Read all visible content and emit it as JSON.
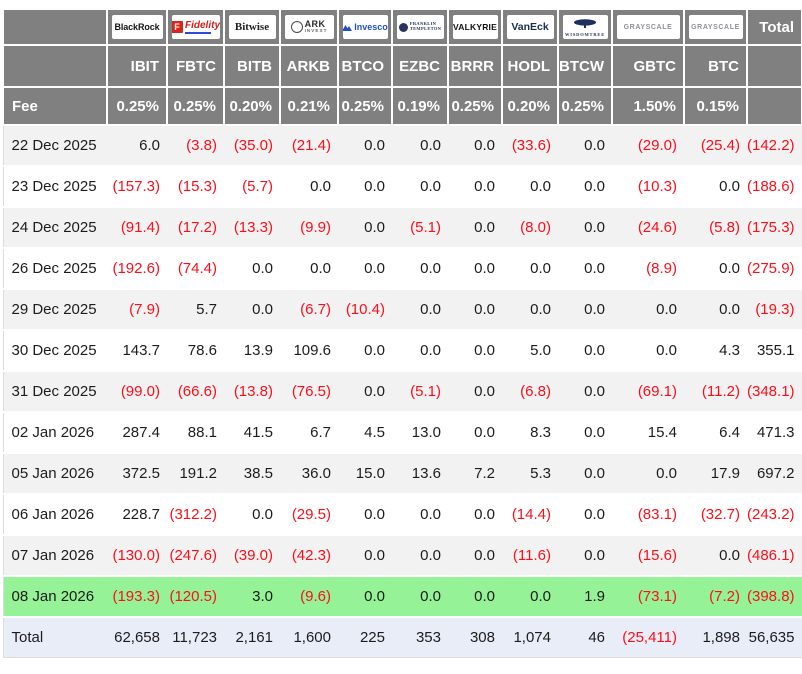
{
  "table": {
    "fee_label": "Fee",
    "total_label": "Total",
    "columns": [
      {
        "ticker": "IBIT",
        "fee": "0.25%",
        "provider": "BlackRock",
        "logo_type": "blackrock",
        "logo_parts": [
          "BlackRock"
        ]
      },
      {
        "ticker": "FBTC",
        "fee": "0.25%",
        "provider": "Fidelity",
        "logo_type": "fidelity",
        "logo_parts": [
          "F",
          "Fidelity"
        ]
      },
      {
        "ticker": "BITB",
        "fee": "0.20%",
        "provider": "Bitwise",
        "logo_type": "bitwise",
        "logo_parts": [
          "Bitwise"
        ]
      },
      {
        "ticker": "ARKB",
        "fee": "0.21%",
        "provider": "ARK Invest",
        "logo_type": "ark",
        "logo_parts": [
          "ARK",
          "INVEST"
        ]
      },
      {
        "ticker": "BTCO",
        "fee": "0.25%",
        "provider": "Invesco",
        "logo_type": "invesco",
        "logo_parts": [
          "Invesco"
        ]
      },
      {
        "ticker": "EZBC",
        "fee": "0.19%",
        "provider": "Franklin Templeton",
        "logo_type": "franklin",
        "logo_parts": [
          "FRANKLIN",
          "TEMPLETON"
        ]
      },
      {
        "ticker": "BRRR",
        "fee": "0.25%",
        "provider": "Valkyrie",
        "logo_type": "valkyrie",
        "logo_parts": [
          "VALKYRIE"
        ]
      },
      {
        "ticker": "HODL",
        "fee": "0.20%",
        "provider": "VanEck",
        "logo_type": "vaneck",
        "logo_parts": [
          "VanEck"
        ]
      },
      {
        "ticker": "BTCW",
        "fee": "0.25%",
        "provider": "WisdomTree",
        "logo_type": "wisdomtree",
        "logo_parts": [
          "WISDOMTREE"
        ]
      },
      {
        "ticker": "GBTC",
        "fee": "1.50%",
        "provider": "Grayscale",
        "logo_type": "grayscale",
        "logo_parts": [
          "GRAYSCALE"
        ]
      },
      {
        "ticker": "BTC",
        "fee": "0.15%",
        "provider": "Grayscale",
        "logo_type": "grayscale",
        "logo_parts": [
          "GRAYSCALE"
        ]
      }
    ],
    "rows": [
      {
        "date": "22 Dec 2025",
        "highlight": "stripe",
        "values": [
          "6.0",
          "(3.8)",
          "(35.0)",
          "(21.4)",
          "0.0",
          "0.0",
          "0.0",
          "(33.6)",
          "0.0",
          "(29.0)",
          "(25.4)"
        ],
        "total": "(142.2)"
      },
      {
        "date": "23 Dec 2025",
        "highlight": "plain",
        "values": [
          "(157.3)",
          "(15.3)",
          "(5.7)",
          "0.0",
          "0.0",
          "0.0",
          "0.0",
          "0.0",
          "0.0",
          "(10.3)",
          "0.0"
        ],
        "total": "(188.6)"
      },
      {
        "date": "24 Dec 2025",
        "highlight": "stripe",
        "values": [
          "(91.4)",
          "(17.2)",
          "(13.3)",
          "(9.9)",
          "0.0",
          "(5.1)",
          "0.0",
          "(8.0)",
          "0.0",
          "(24.6)",
          "(5.8)"
        ],
        "total": "(175.3)"
      },
      {
        "date": "26 Dec 2025",
        "highlight": "plain",
        "values": [
          "(192.6)",
          "(74.4)",
          "0.0",
          "0.0",
          "0.0",
          "0.0",
          "0.0",
          "0.0",
          "0.0",
          "(8.9)",
          "0.0"
        ],
        "total": "(275.9)"
      },
      {
        "date": "29 Dec 2025",
        "highlight": "stripe",
        "values": [
          "(7.9)",
          "5.7",
          "0.0",
          "(6.7)",
          "(10.4)",
          "0.0",
          "0.0",
          "0.0",
          "0.0",
          "0.0",
          "0.0"
        ],
        "total": "(19.3)"
      },
      {
        "date": "30 Dec 2025",
        "highlight": "plain",
        "values": [
          "143.7",
          "78.6",
          "13.9",
          "109.6",
          "0.0",
          "0.0",
          "0.0",
          "5.0",
          "0.0",
          "0.0",
          "4.3"
        ],
        "total": "355.1"
      },
      {
        "date": "31 Dec 2025",
        "highlight": "stripe",
        "values": [
          "(99.0)",
          "(66.6)",
          "(13.8)",
          "(76.5)",
          "0.0",
          "(5.1)",
          "0.0",
          "(6.8)",
          "0.0",
          "(69.1)",
          "(11.2)"
        ],
        "total": "(348.1)"
      },
      {
        "date": "02 Jan 2026",
        "highlight": "plain",
        "values": [
          "287.4",
          "88.1",
          "41.5",
          "6.7",
          "4.5",
          "13.0",
          "0.0",
          "8.3",
          "0.0",
          "15.4",
          "6.4"
        ],
        "total": "471.3"
      },
      {
        "date": "05 Jan 2026",
        "highlight": "stripe",
        "values": [
          "372.5",
          "191.2",
          "38.5",
          "36.0",
          "15.0",
          "13.6",
          "7.2",
          "5.3",
          "0.0",
          "0.0",
          "17.9"
        ],
        "total": "697.2"
      },
      {
        "date": "06 Jan 2026",
        "highlight": "plain",
        "values": [
          "228.7",
          "(312.2)",
          "0.0",
          "(29.5)",
          "0.0",
          "0.0",
          "0.0",
          "(14.4)",
          "0.0",
          "(83.1)",
          "(32.7)"
        ],
        "total": "(243.2)"
      },
      {
        "date": "07 Jan 2026",
        "highlight": "stripe",
        "values": [
          "(130.0)",
          "(247.6)",
          "(39.0)",
          "(42.3)",
          "0.0",
          "0.0",
          "0.0",
          "(11.6)",
          "0.0",
          "(15.6)",
          "0.0"
        ],
        "total": "(486.1)"
      },
      {
        "date": "08 Jan 2026",
        "highlight": "green",
        "values": [
          "(193.3)",
          "(120.5)",
          "3.0",
          "(9.6)",
          "0.0",
          "0.0",
          "0.0",
          "0.0",
          "1.9",
          "(73.1)",
          "(7.2)"
        ],
        "total": "(398.8)"
      }
    ],
    "total_row": {
      "label": "Total",
      "values": [
        "62,658",
        "11,723",
        "2,161",
        "1,600",
        "225",
        "353",
        "308",
        "1,074",
        "46",
        "(25,411)",
        "1,898"
      ],
      "total": "56,635"
    }
  },
  "chart_data": {
    "type": "table",
    "categories": [
      "22 Dec 2025",
      "23 Dec 2025",
      "24 Dec 2025",
      "26 Dec 2025",
      "29 Dec 2025",
      "30 Dec 2025",
      "31 Dec 2025",
      "02 Jan 2026",
      "05 Jan 2026",
      "06 Jan 2026",
      "07 Jan 2026",
      "08 Jan 2026"
    ],
    "series": [
      {
        "name": "IBIT",
        "provider": "BlackRock",
        "fee_pct": 0.25,
        "values": [
          6.0,
          -157.3,
          -91.4,
          -192.6,
          -7.9,
          143.7,
          -99.0,
          287.4,
          372.5,
          228.7,
          -130.0,
          -193.3
        ],
        "total": 62658
      },
      {
        "name": "FBTC",
        "provider": "Fidelity",
        "fee_pct": 0.25,
        "values": [
          -3.8,
          -15.3,
          -17.2,
          -74.4,
          5.7,
          78.6,
          -66.6,
          88.1,
          191.2,
          -312.2,
          -247.6,
          -120.5
        ],
        "total": 11723
      },
      {
        "name": "BITB",
        "provider": "Bitwise",
        "fee_pct": 0.2,
        "values": [
          -35.0,
          -5.7,
          -13.3,
          0.0,
          0.0,
          13.9,
          -13.8,
          41.5,
          38.5,
          0.0,
          -39.0,
          3.0
        ],
        "total": 2161
      },
      {
        "name": "ARKB",
        "provider": "ARK Invest",
        "fee_pct": 0.21,
        "values": [
          -21.4,
          0.0,
          -9.9,
          0.0,
          -6.7,
          109.6,
          -76.5,
          6.7,
          36.0,
          -29.5,
          -42.3,
          -9.6
        ],
        "total": 1600
      },
      {
        "name": "BTCO",
        "provider": "Invesco",
        "fee_pct": 0.25,
        "values": [
          0.0,
          0.0,
          0.0,
          0.0,
          -10.4,
          0.0,
          0.0,
          4.5,
          15.0,
          0.0,
          0.0,
          0.0
        ],
        "total": 225
      },
      {
        "name": "EZBC",
        "provider": "Franklin Templeton",
        "fee_pct": 0.19,
        "values": [
          0.0,
          0.0,
          -5.1,
          0.0,
          0.0,
          0.0,
          -5.1,
          13.0,
          13.6,
          0.0,
          0.0,
          0.0
        ],
        "total": 353
      },
      {
        "name": "BRRR",
        "provider": "Valkyrie",
        "fee_pct": 0.25,
        "values": [
          0.0,
          0.0,
          0.0,
          0.0,
          0.0,
          0.0,
          0.0,
          0.0,
          7.2,
          0.0,
          0.0,
          0.0
        ],
        "total": 308
      },
      {
        "name": "HODL",
        "provider": "VanEck",
        "fee_pct": 0.2,
        "values": [
          -33.6,
          0.0,
          -8.0,
          0.0,
          0.0,
          5.0,
          -6.8,
          8.3,
          5.3,
          -14.4,
          -11.6,
          0.0
        ],
        "total": 1074
      },
      {
        "name": "BTCW",
        "provider": "WisdomTree",
        "fee_pct": 0.25,
        "values": [
          0.0,
          0.0,
          0.0,
          0.0,
          0.0,
          0.0,
          0.0,
          0.0,
          0.0,
          0.0,
          0.0,
          1.9
        ],
        "total": 46
      },
      {
        "name": "GBTC",
        "provider": "Grayscale",
        "fee_pct": 1.5,
        "values": [
          -29.0,
          -10.3,
          -24.6,
          -8.9,
          0.0,
          0.0,
          -69.1,
          15.4,
          0.0,
          -83.1,
          -15.6,
          -73.1
        ],
        "total": -25411
      },
      {
        "name": "BTC",
        "provider": "Grayscale",
        "fee_pct": 0.15,
        "values": [
          -25.4,
          0.0,
          -5.8,
          0.0,
          0.0,
          4.3,
          -11.2,
          6.4,
          17.9,
          -32.7,
          0.0,
          -7.2
        ],
        "total": 1898
      }
    ],
    "row_totals": [
      -142.2,
      -188.6,
      -175.3,
      -275.9,
      -19.3,
      355.1,
      -348.1,
      471.3,
      697.2,
      -243.2,
      -486.1,
      -398.8
    ],
    "grand_total": 56635,
    "highlighted_row": "08 Jan 2026"
  },
  "colors": {
    "header_bg": "#808080",
    "stripe_row": "#f2f2f2",
    "plain_row": "#ffffff",
    "highlight_green": "#96f296",
    "total_row_bg": "#e9edf8",
    "negative_text": "#fb0f1b",
    "text": "#1c1c1c"
  }
}
